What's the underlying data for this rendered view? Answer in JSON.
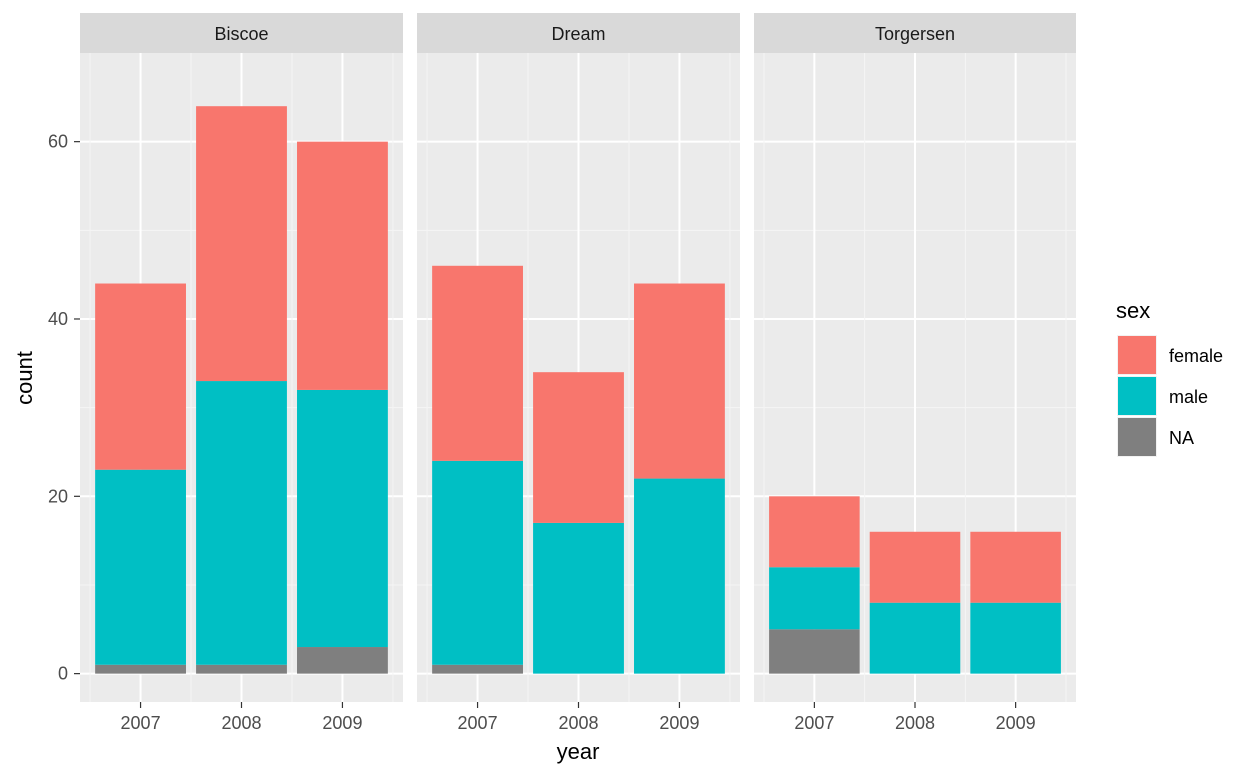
{
  "chart_data": {
    "type": "bar",
    "stacked": true,
    "facet_by": [
      "Biscoe",
      "Dream",
      "Torgersen"
    ],
    "categories": [
      "2007",
      "2008",
      "2009"
    ],
    "xlabel": "year",
    "ylabel": "count",
    "ylim": [
      -3.2,
      70
    ],
    "yticks": [
      0,
      20,
      40,
      60
    ],
    "grid": true,
    "legend": {
      "title": "sex",
      "position": "right",
      "entries": [
        {
          "label": "female",
          "color": "#F8766D"
        },
        {
          "label": "male",
          "color": "#00BFC4"
        },
        {
          "label": "NA",
          "color": "#7F7F7F"
        }
      ]
    },
    "facets": [
      {
        "name": "Biscoe",
        "series": [
          {
            "name": "NA",
            "values": [
              1,
              1,
              3
            ]
          },
          {
            "name": "male",
            "values": [
              22,
              32,
              29
            ]
          },
          {
            "name": "female",
            "values": [
              21,
              31,
              28
            ]
          }
        ]
      },
      {
        "name": "Dream",
        "series": [
          {
            "name": "NA",
            "values": [
              1,
              0,
              0
            ]
          },
          {
            "name": "male",
            "values": [
              23,
              17,
              22
            ]
          },
          {
            "name": "female",
            "values": [
              22,
              17,
              22
            ]
          }
        ]
      },
      {
        "name": "Torgersen",
        "series": [
          {
            "name": "NA",
            "values": [
              5,
              0,
              0
            ]
          },
          {
            "name": "male",
            "values": [
              7,
              8,
              8
            ]
          },
          {
            "name": "female",
            "values": [
              8,
              8,
              8
            ]
          }
        ]
      }
    ]
  }
}
